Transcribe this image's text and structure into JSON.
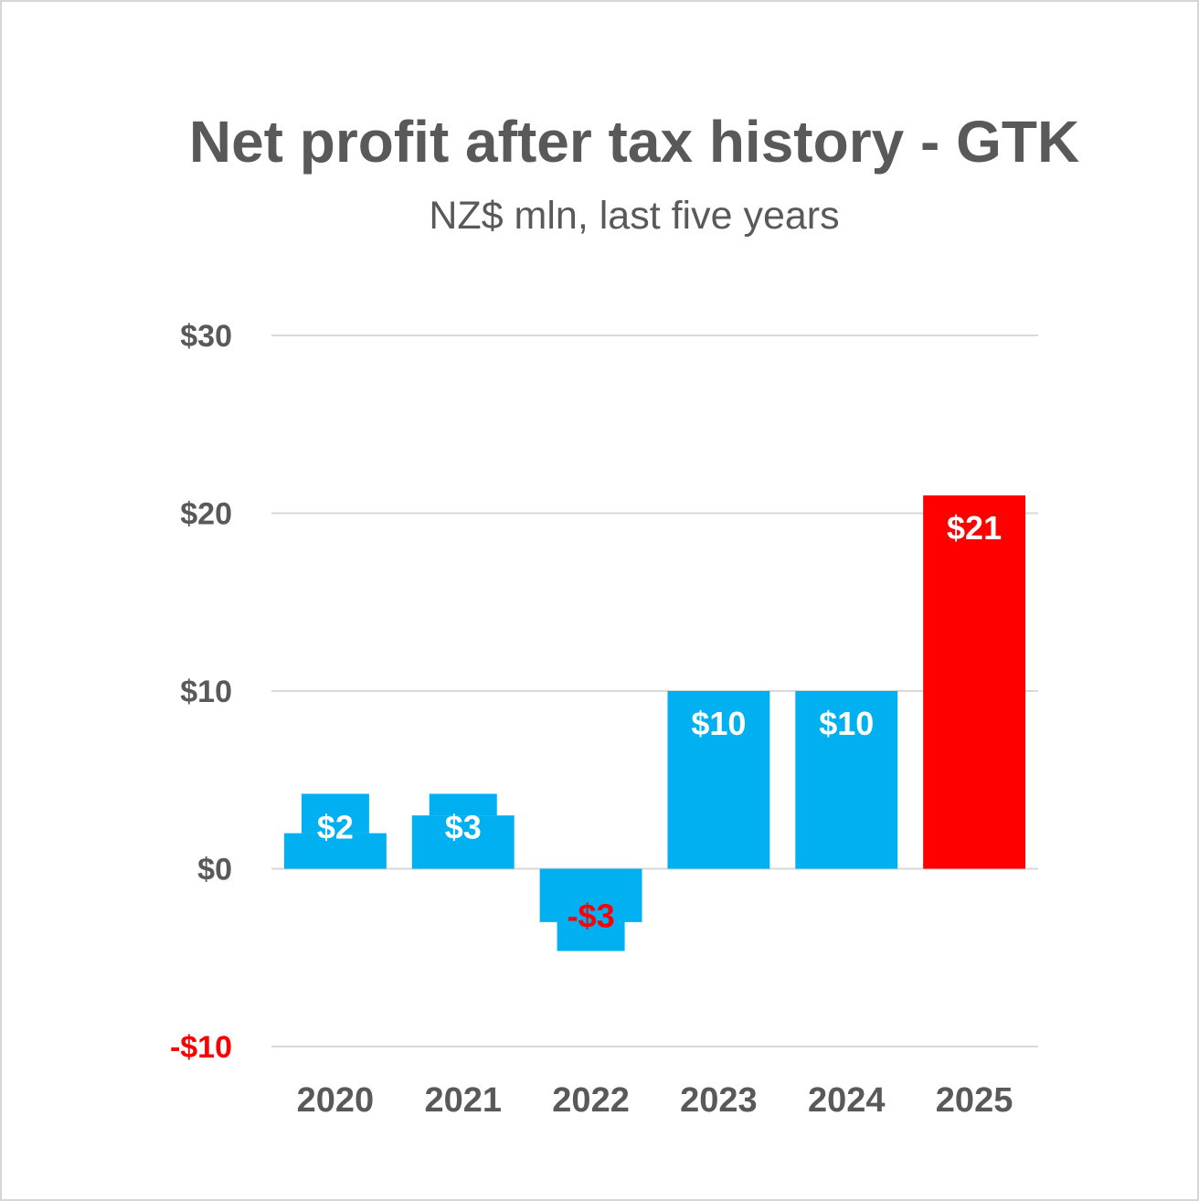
{
  "chart_data": {
    "type": "bar",
    "title": "Net profit after tax history - GTK",
    "subtitle": "NZ$ mln, last five years",
    "xlabel": "",
    "ylabel": "",
    "categories": [
      "2020",
      "2021",
      "2022",
      "2023",
      "2024",
      "2025"
    ],
    "values": [
      2,
      3,
      -3,
      10,
      10,
      21
    ],
    "data_labels": [
      "$2",
      "$3",
      "-$3",
      "$10",
      "$10",
      "$21"
    ],
    "ylim": [
      -10,
      30
    ],
    "yticks": [
      30,
      20,
      10,
      0,
      -10
    ],
    "ytick_labels": [
      "$30",
      "$20",
      "$10",
      "$0",
      "-$10"
    ],
    "grid": true,
    "legend": "none",
    "colors": {
      "bar_default": "#00B0F0",
      "bar_highlight": "#FF0000",
      "negative_text": "#FF0000",
      "label_text": "#FFFFFF",
      "axis_text": "#595959",
      "gridline": "#D9D9D9"
    },
    "highlight_index": 5
  }
}
